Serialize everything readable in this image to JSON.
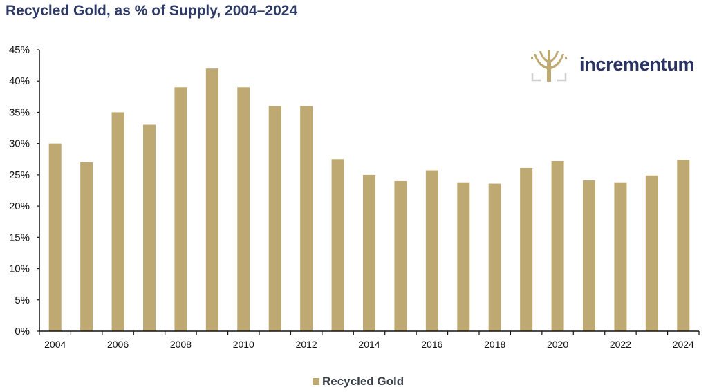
{
  "header": {
    "title": "Recycled Gold, as % of Supply, 2004–2024"
  },
  "logo": {
    "text": "incrementum",
    "icon": "tree-icon"
  },
  "colors": {
    "bar": "#bfa972",
    "title": "#2e3a66",
    "axis": "#111111"
  },
  "chart_data": {
    "type": "bar",
    "title": "Recycled Gold, as % of Supply, 2004–2024",
    "xlabel": "",
    "ylabel": "",
    "ylim": [
      0,
      45
    ],
    "yticks": [
      0,
      5,
      10,
      15,
      20,
      25,
      30,
      35,
      40,
      45
    ],
    "ytick_labels": [
      "0%",
      "5%",
      "10%",
      "15%",
      "20%",
      "25%",
      "30%",
      "35%",
      "40%",
      "45%"
    ],
    "xtick_labels": [
      "2004",
      "2006",
      "2008",
      "2010",
      "2012",
      "2014",
      "2016",
      "2018",
      "2020",
      "2022",
      "2024"
    ],
    "categories": [
      "2004",
      "2005",
      "2006",
      "2007",
      "2008",
      "2009",
      "2010",
      "2011",
      "2012",
      "2013",
      "2014",
      "2015",
      "2016",
      "2017",
      "2018",
      "2019",
      "2020",
      "2021",
      "2022",
      "2023",
      "2024"
    ],
    "series": [
      {
        "name": "Recycled Gold",
        "values": [
          30,
          27,
          35,
          33,
          39,
          42,
          39,
          36,
          36,
          27.5,
          25,
          24,
          25.7,
          23.8,
          23.6,
          26.1,
          27.2,
          24.1,
          23.8,
          24.9,
          27.4
        ]
      }
    ],
    "legend": {
      "position": "bottom-center",
      "entries": [
        "Recycled Gold"
      ]
    },
    "grid": false
  }
}
